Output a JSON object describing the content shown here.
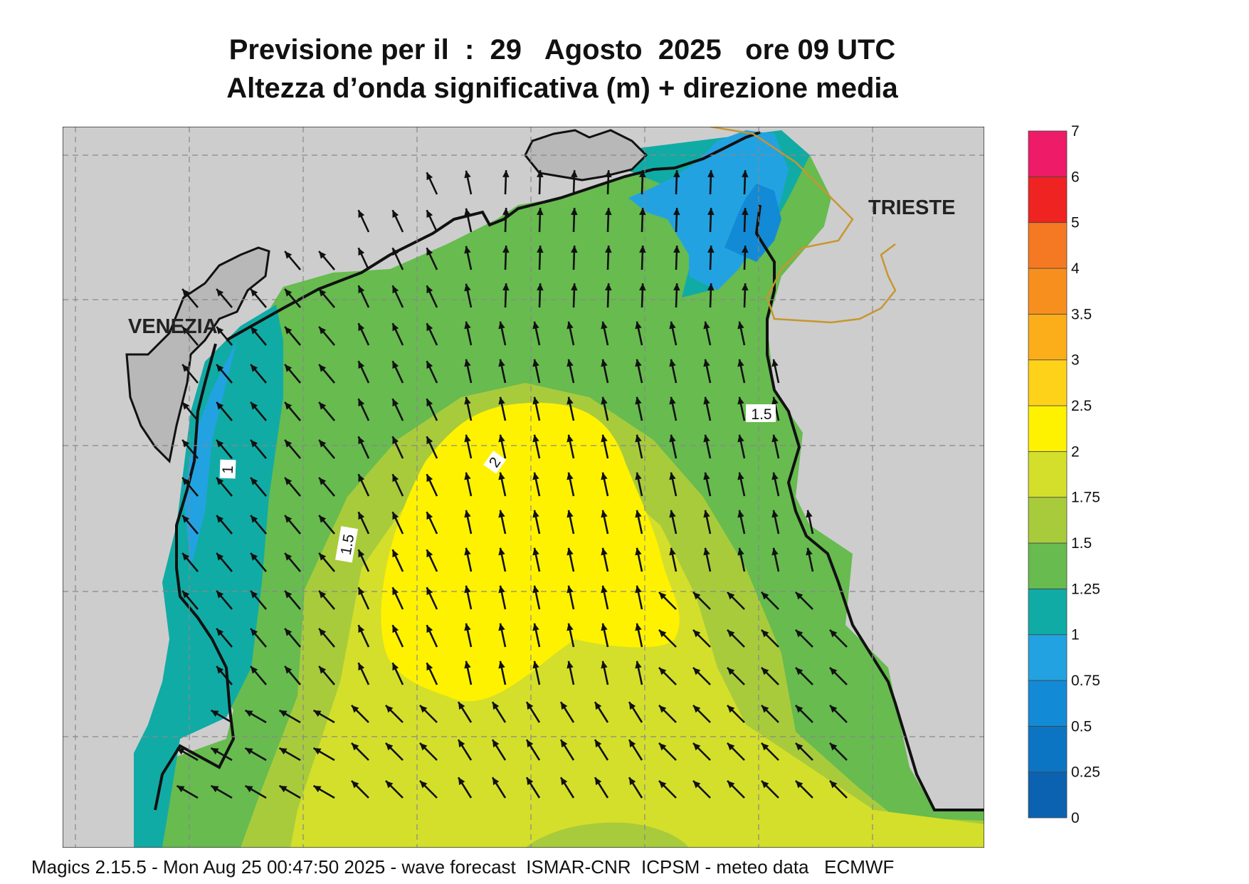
{
  "title_line1": "Previsione per il  :  29   Agosto  2025   ore 09 UTC",
  "title_line2": "Altezza d’onda significativa (m) + direzione media",
  "cities": {
    "venezia": "VENEZIA",
    "trieste": "TRIESTE"
  },
  "contour_labels": {
    "one": "1",
    "one_five_west": "1.5",
    "two": "2",
    "one_five_east": "1.5"
  },
  "colorbar": {
    "levels": [
      "0",
      "0.25",
      "0.5",
      "0.75",
      "1",
      "1.25",
      "1.5",
      "1.75",
      "2",
      "2.5",
      "3",
      "3.5",
      "4",
      "5",
      "6",
      "7"
    ],
    "colors": [
      "#0a62b0",
      "#0b75c4",
      "#138ad6",
      "#23a2e2",
      "#11aba5",
      "#67bb4f",
      "#a8cb3c",
      "#d4df2b",
      "#fff200",
      "#ffd21a",
      "#fbae19",
      "#f78f1e",
      "#f57922",
      "#ee2322",
      "#ee1b68"
    ]
  },
  "colors": {
    "land": "#cdcdce",
    "coast": "#111111",
    "border": "#c8962e",
    "arrow": "#111111"
  },
  "footer": "Magics 2.15.5 - Mon Aug 25 00:47:50 2025 - wave forecast  ISMAR-CNR  ICPSM - meteo data   ECMWF"
}
